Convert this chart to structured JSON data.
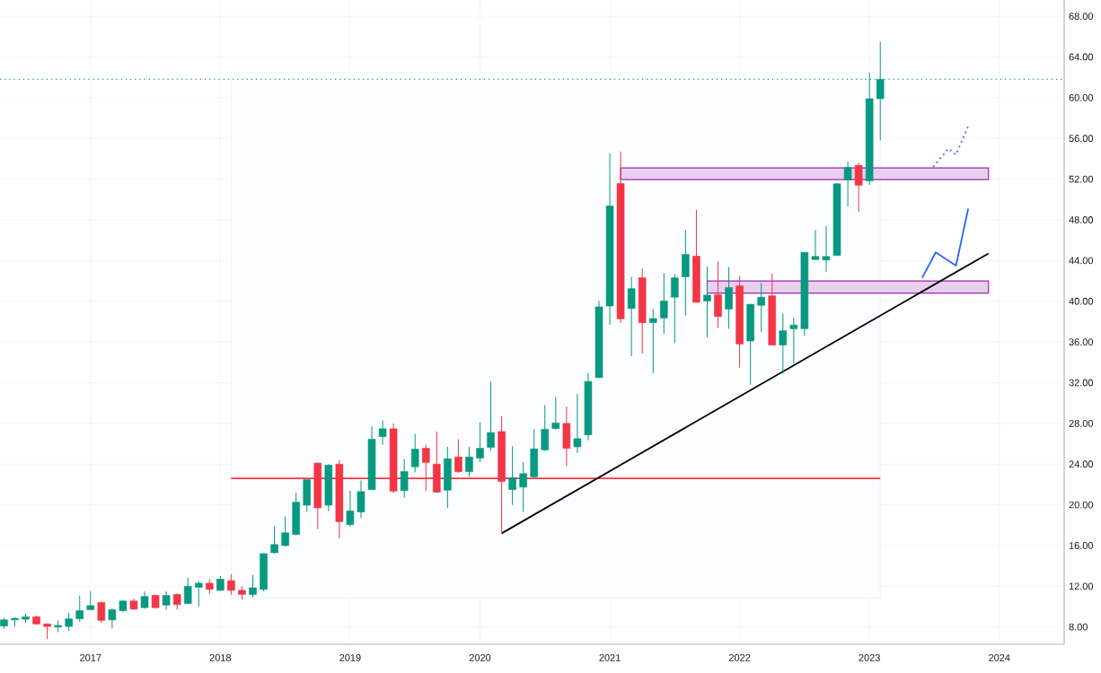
{
  "chart_data": {
    "type": "candlestick",
    "x": [
      "2016-05",
      "2016-06",
      "2016-07",
      "2016-08",
      "2016-09",
      "2016-10",
      "2016-11",
      "2016-12",
      "2017-01",
      "2017-02",
      "2017-03",
      "2017-04",
      "2017-05",
      "2017-06",
      "2017-07",
      "2017-08",
      "2017-09",
      "2017-10",
      "2017-11",
      "2017-12",
      "2018-01",
      "2018-02",
      "2018-03",
      "2018-04",
      "2018-05",
      "2018-06",
      "2018-07",
      "2018-08",
      "2018-09",
      "2018-10",
      "2018-11",
      "2018-12",
      "2019-01",
      "2019-02",
      "2019-03",
      "2019-04",
      "2019-05",
      "2019-06",
      "2019-07",
      "2019-08",
      "2019-09",
      "2019-10",
      "2019-11",
      "2019-12",
      "2020-01",
      "2020-02",
      "2020-03",
      "2020-04",
      "2020-05",
      "2020-06",
      "2020-07",
      "2020-08",
      "2020-09",
      "2020-10",
      "2020-11",
      "2020-12",
      "2021-01",
      "2021-02",
      "2021-03",
      "2021-04",
      "2021-05",
      "2021-06",
      "2021-07",
      "2021-08",
      "2021-09",
      "2021-10",
      "2021-11",
      "2021-12",
      "2022-01",
      "2022-02",
      "2022-03",
      "2022-04",
      "2022-05",
      "2022-06",
      "2022-07",
      "2022-08",
      "2022-09",
      "2022-10",
      "2022-11",
      "2022-12",
      "2023-01",
      "2023-02"
    ],
    "ohlc": [
      [
        8.1,
        8.9,
        7.8,
        8.7
      ],
      [
        8.7,
        8.95,
        8.05,
        8.85
      ],
      [
        8.76,
        9.3,
        8.4,
        9.0
      ],
      [
        9.0,
        9.1,
        8.2,
        8.3
      ],
      [
        8.3,
        8.35,
        6.8,
        8.06
      ],
      [
        8.0,
        8.65,
        7.5,
        8.15
      ],
      [
        8.06,
        9.4,
        7.6,
        8.8
      ],
      [
        8.8,
        11.1,
        8.5,
        9.6
      ],
      [
        9.7,
        11.5,
        9.7,
        10.1
      ],
      [
        10.4,
        10.5,
        8.4,
        8.65
      ],
      [
        8.7,
        9.8,
        7.85,
        9.7
      ],
      [
        9.6,
        10.6,
        9.45,
        10.55
      ],
      [
        10.55,
        10.8,
        9.7,
        9.75
      ],
      [
        9.9,
        11.5,
        9.8,
        11.0
      ],
      [
        11.1,
        11.2,
        9.8,
        9.9
      ],
      [
        10.15,
        11.5,
        9.7,
        11.1
      ],
      [
        11.2,
        11.3,
        9.7,
        10.2
      ],
      [
        10.3,
        12.85,
        10.25,
        12.0
      ],
      [
        11.9,
        12.5,
        10.0,
        12.3
      ],
      [
        12.3,
        12.7,
        11.2,
        11.7
      ],
      [
        11.6,
        13.0,
        11.55,
        12.7
      ],
      [
        12.55,
        13.2,
        11.15,
        11.6
      ],
      [
        11.6,
        12.0,
        10.7,
        11.2
      ],
      [
        11.2,
        13.1,
        10.9,
        11.85
      ],
      [
        11.7,
        15.25,
        11.5,
        15.2
      ],
      [
        15.3,
        17.9,
        15.2,
        16.1
      ],
      [
        16.0,
        18.85,
        15.9,
        17.26
      ],
      [
        17.1,
        21.2,
        17.0,
        20.26
      ],
      [
        19.97,
        22.47,
        19.3,
        22.47
      ],
      [
        24.1,
        24.15,
        17.6,
        19.7
      ],
      [
        19.97,
        24.0,
        19.4,
        23.9
      ],
      [
        24.0,
        24.4,
        16.7,
        18.35
      ],
      [
        18.06,
        21.4,
        17.85,
        19.4
      ],
      [
        19.3,
        22.4,
        18.7,
        21.3
      ],
      [
        21.5,
        27.7,
        21.44,
        26.44
      ],
      [
        26.7,
        28.3,
        25.9,
        27.47
      ],
      [
        27.47,
        28.0,
        21.15,
        21.35
      ],
      [
        21.4,
        24.5,
        20.7,
        23.27
      ],
      [
        23.74,
        26.97,
        23.2,
        25.47
      ],
      [
        25.56,
        25.9,
        21.35,
        24.17
      ],
      [
        24.0,
        27.2,
        21.2,
        21.24
      ],
      [
        21.44,
        25.7,
        19.7,
        24.53
      ],
      [
        24.7,
        26.44,
        23.15,
        23.26
      ],
      [
        23.26,
        25.7,
        22.76,
        24.7
      ],
      [
        24.6,
        28.1,
        24.2,
        25.56
      ],
      [
        25.65,
        32.1,
        25.3,
        27.1
      ],
      [
        27.2,
        28.7,
        17.2,
        22.3
      ],
      [
        21.5,
        25.75,
        19.98,
        22.67
      ],
      [
        21.74,
        24.2,
        19.3,
        23.06
      ],
      [
        22.76,
        27.45,
        22.67,
        25.5
      ],
      [
        25.4,
        29.8,
        25.3,
        27.42
      ],
      [
        27.5,
        30.6,
        27.4,
        28.04
      ],
      [
        28.0,
        29.65,
        23.8,
        25.55
      ],
      [
        25.7,
        30.9,
        25.1,
        26.5
      ],
      [
        26.87,
        32.94,
        26.34,
        32.12
      ],
      [
        32.5,
        40.04,
        32.5,
        39.45
      ],
      [
        39.54,
        54.55,
        37.7,
        49.36
      ],
      [
        51.56,
        54.7,
        37.87,
        38.28
      ],
      [
        39.3,
        42.4,
        34.6,
        41.24
      ],
      [
        42.3,
        43.2,
        34.86,
        37.9
      ],
      [
        37.9,
        39.24,
        32.94,
        38.3
      ],
      [
        38.36,
        42.76,
        36.8,
        40.03
      ],
      [
        40.4,
        42.67,
        35.9,
        42.3
      ],
      [
        42.4,
        47.0,
        38.6,
        44.6
      ],
      [
        44.43,
        49.0,
        39.9,
        39.9
      ],
      [
        40.03,
        43.4,
        36.46,
        40.6
      ],
      [
        40.65,
        43.9,
        37.4,
        38.5
      ],
      [
        39.24,
        43.35,
        37.3,
        41.35
      ],
      [
        41.5,
        42.5,
        33.5,
        35.8
      ],
      [
        36.1,
        39.74,
        31.8,
        39.7
      ],
      [
        39.6,
        41.8,
        37.0,
        40.4
      ],
      [
        40.54,
        42.74,
        35.7,
        35.7
      ],
      [
        35.7,
        38.8,
        32.9,
        37.1
      ],
      [
        37.3,
        38.4,
        33.9,
        37.66
      ],
      [
        37.3,
        44.8,
        36.6,
        44.8
      ],
      [
        44.1,
        47.0,
        44.06,
        44.4
      ],
      [
        44.06,
        47.4,
        42.9,
        44.4
      ],
      [
        44.5,
        51.6,
        44.5,
        51.54
      ],
      [
        51.92,
        53.7,
        49.3,
        53.15
      ],
      [
        53.35,
        53.6,
        48.8,
        51.4
      ],
      [
        51.83,
        62.5,
        51.45,
        59.9
      ],
      [
        59.9,
        65.5,
        55.8,
        61.8
      ]
    ],
    "colors": [
      "#089981",
      "#089981",
      "#089981",
      "#f23645",
      "#f23645",
      "#089981",
      "#089981",
      "#089981",
      "#089981",
      "#f23645",
      "#089981",
      "#089981",
      "#f23645",
      "#089981",
      "#f23645",
      "#089981",
      "#f23645",
      "#089981",
      "#089981",
      "#f23645",
      "#089981",
      "#f23645",
      "#f23645",
      "#089981",
      "#089981",
      "#089981",
      "#089981",
      "#089981",
      "#089981",
      "#f23645",
      "#089981",
      "#f23645",
      "#089981",
      "#089981",
      "#089981",
      "#089981",
      "#f23645",
      "#089981",
      "#089981",
      "#f23645",
      "#f23645",
      "#089981",
      "#f23645",
      "#089981",
      "#089981",
      "#089981",
      "#f23645",
      "#089981",
      "#089981",
      "#089981",
      "#089981",
      "#089981",
      "#f23645",
      "#089981",
      "#089981",
      "#089981",
      "#089981",
      "#f23645",
      "#089981",
      "#f23645",
      "#089981",
      "#089981",
      "#089981",
      "#089981",
      "#f23645",
      "#089981",
      "#f23645",
      "#089981",
      "#f23645",
      "#089981",
      "#089981",
      "#f23645",
      "#089981",
      "#089981",
      "#089981",
      "#089981",
      "#089981",
      "#089981",
      "#089981",
      "#f23645",
      "#089981",
      "#089981"
    ],
    "series": [
      {
        "type": "area",
        "color": "#eef6fb",
        "x": [
          "2018-02",
          "2023-02"
        ],
        "values": [
          null,
          null
        ],
        "upper": [
          62.5,
          62.5
        ],
        "lower": [
          10.8,
          10.8
        ]
      },
      {
        "type": "area",
        "color": "#9c27b0",
        "x": [
          "2021-02",
          "2023-12"
        ],
        "values": [
          null,
          null
        ],
        "upper": [
          53.1,
          53.1
        ],
        "lower": [
          51.96,
          51.96
        ]
      },
      {
        "type": "area",
        "color": "#9c27b0",
        "x": [
          "2021-10",
          "2023-12"
        ],
        "values": [
          null,
          null
        ],
        "upper": [
          42.0,
          42.0
        ],
        "lower": [
          40.8,
          40.8
        ]
      },
      {
        "type": "line",
        "color": "#f23645",
        "line_style": "solid",
        "x": [
          "2018-02",
          "2023-02"
        ],
        "values": [
          22.6,
          22.6
        ]
      },
      {
        "type": "line",
        "color": "#000000",
        "line_style": "solid",
        "x": [
          "2020-03",
          "2023-12"
        ],
        "values": [
          17.2,
          44.7
        ]
      },
      {
        "type": "line",
        "color": "#2962ff",
        "line_style": "solid",
        "x": [
          "2023-05-28",
          "2023-07-05",
          "2023-09-01",
          "2023-10-05"
        ],
        "values": [
          42.3,
          44.8,
          43.5,
          49.1
        ]
      },
      {
        "type": "line",
        "color": "#2962ff",
        "line_style": "dotted",
        "x": [
          "2023-06-28",
          "2023-08-10",
          "2023-09-01",
          "2023-10-05"
        ],
        "values": [
          53.2,
          55.0,
          54.4,
          57.2
        ]
      }
    ],
    "ref_lines": [
      {
        "axis": "y",
        "value": 61.8,
        "color": "#089981",
        "line_style": "dotted"
      }
    ],
    "xlim": [
      "2016-04-20",
      "2024-07"
    ],
    "ylim": [
      6.3,
      69.6
    ],
    "xticks": [
      {
        "value": "2017",
        "label": "2017"
      },
      {
        "value": "2018",
        "label": "2018"
      },
      {
        "value": "2019",
        "label": "2019"
      },
      {
        "value": "2020",
        "label": "2020"
      },
      {
        "value": "2021",
        "label": "2021"
      },
      {
        "value": "2022",
        "label": "2022"
      },
      {
        "value": "2023",
        "label": "2023"
      },
      {
        "value": "2024",
        "label": "2024"
      }
    ],
    "yticks": [
      {
        "value": 8,
        "label": "8.00"
      },
      {
        "value": 12,
        "label": "12.00"
      },
      {
        "value": 16,
        "label": "16.00"
      },
      {
        "value": 20,
        "label": "20.00"
      },
      {
        "value": 24,
        "label": "24.00"
      },
      {
        "value": 28,
        "label": "28.00"
      },
      {
        "value": 32,
        "label": "32.00"
      },
      {
        "value": 36,
        "label": "36.00"
      },
      {
        "value": 40,
        "label": "40.00"
      },
      {
        "value": 44,
        "label": "44.00"
      },
      {
        "value": 48,
        "label": "48.00"
      },
      {
        "value": 52,
        "label": "52.00"
      },
      {
        "value": 56,
        "label": "56.00"
      },
      {
        "value": 60,
        "label": "60.00"
      },
      {
        "value": 64,
        "label": "64.00"
      },
      {
        "value": 68,
        "label": "68.00"
      }
    ],
    "grid": true
  }
}
